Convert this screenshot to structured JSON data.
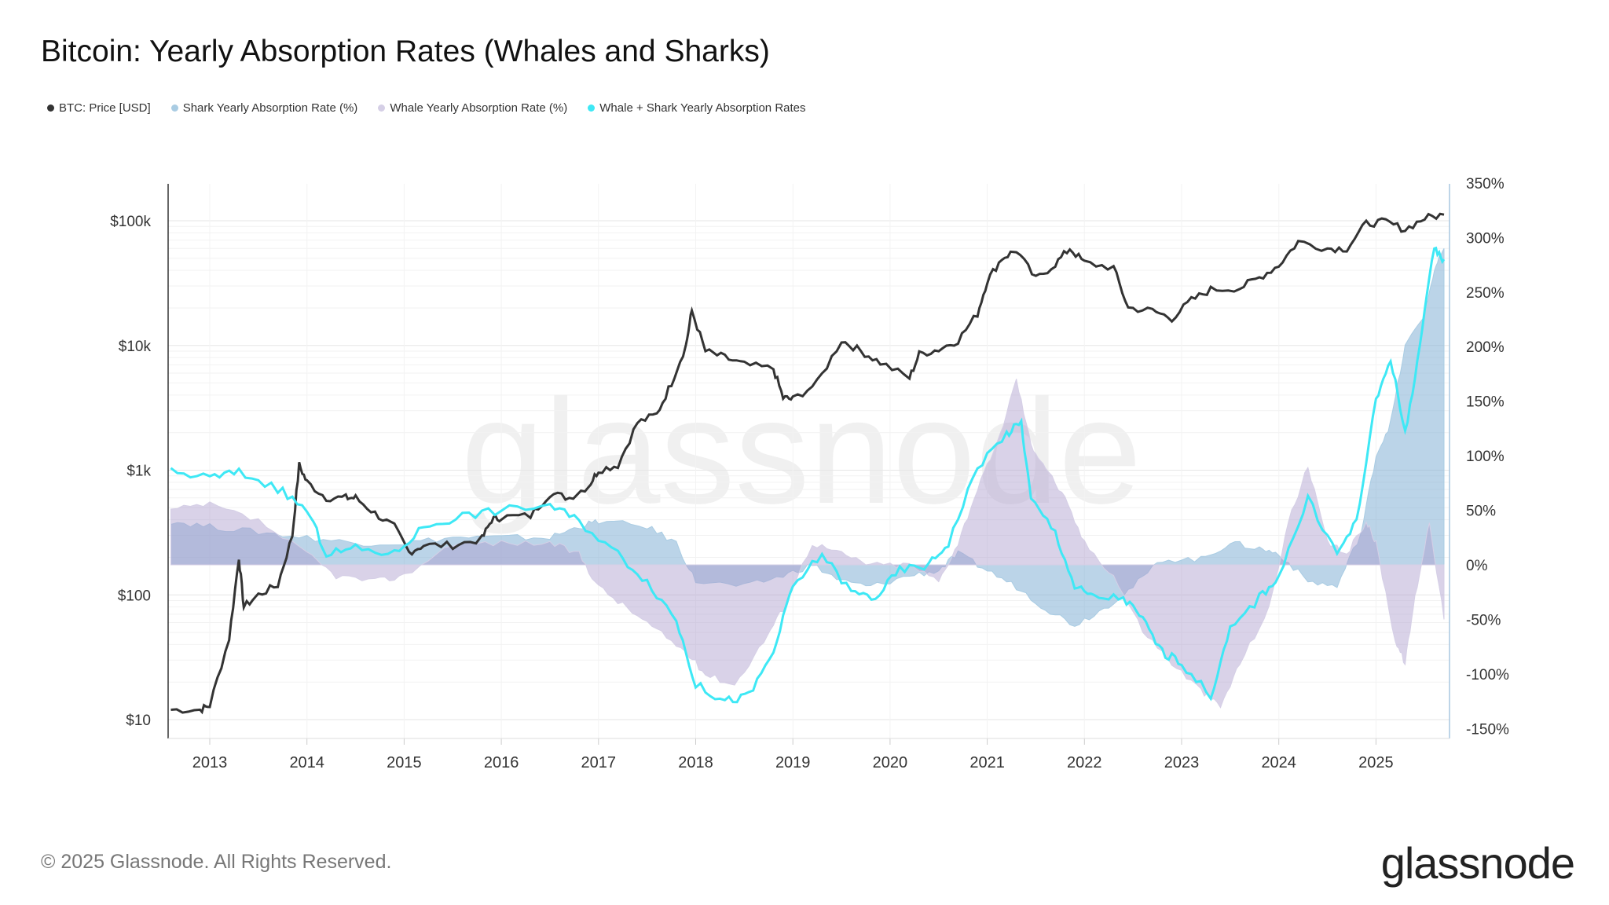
{
  "title": "Bitcoin: Yearly Absorption Rates (Whales and Sharks)",
  "legend": [
    {
      "label": "BTC: Price [USD]",
      "color": "#333333"
    },
    {
      "label": "Shark Yearly Absorption Rate (%)",
      "color": "#a9cce3"
    },
    {
      "label": "Whale Yearly Absorption Rate (%)",
      "color": "#d5cfe6"
    },
    {
      "label": "Whale + Shark Yearly Absorption Rates",
      "color": "#3ee8f5"
    }
  ],
  "footer": {
    "copyright": "© 2025 Glassnode. All Rights Reserved.",
    "logo": "glassnode"
  },
  "watermark": "glassnode",
  "chart_data": {
    "type": "line",
    "title": "Bitcoin: Yearly Absorption Rates (Whales and Sharks)",
    "x_ticks": [
      "2013",
      "2014",
      "2015",
      "2016",
      "2017",
      "2018",
      "2019",
      "2020",
      "2021",
      "2022",
      "2023",
      "2024",
      "2025"
    ],
    "xlim": [
      2012.6,
      2025.72
    ],
    "left_axis": {
      "scale": "log",
      "ticks": [
        "$10",
        "$100",
        "$1k",
        "$10k",
        "$100k"
      ],
      "tick_values": [
        10,
        100,
        1000,
        10000,
        100000
      ],
      "ylim": [
        6,
        250000
      ]
    },
    "right_axis": {
      "scale": "linear",
      "ticks": [
        "350%",
        "300%",
        "250%",
        "200%",
        "150%",
        "100%",
        "50%",
        "0%",
        "-50%",
        "-100%",
        "-150%"
      ],
      "tick_values": [
        350,
        300,
        250,
        200,
        150,
        100,
        50,
        0,
        -50,
        -100,
        -150
      ],
      "ylim": [
        -155,
        350
      ]
    },
    "grid": true,
    "legend_position": "top-left",
    "series": [
      {
        "name": "BTC: Price [USD]",
        "axis": "left",
        "kind": "line",
        "color": "#333333",
        "x": [
          2012.6,
          2012.9,
          2013.0,
          2013.2,
          2013.3,
          2013.35,
          2013.5,
          2013.7,
          2013.85,
          2013.92,
          2014.0,
          2014.2,
          2014.4,
          2014.5,
          2014.7,
          2014.9,
          2015.05,
          2015.2,
          2015.5,
          2015.8,
          2015.9,
          2016.0,
          2016.3,
          2016.5,
          2016.7,
          2016.9,
          2017.0,
          2017.2,
          2017.4,
          2017.6,
          2017.75,
          2017.9,
          2017.96,
          2018.1,
          2018.3,
          2018.5,
          2018.8,
          2018.9,
          2019.0,
          2019.25,
          2019.5,
          2019.7,
          2019.9,
          2020.2,
          2020.3,
          2020.5,
          2020.7,
          2020.9,
          2021.0,
          2021.15,
          2021.3,
          2021.5,
          2021.7,
          2021.85,
          2022.0,
          2022.3,
          2022.45,
          2022.7,
          2022.9,
          2023.1,
          2023.3,
          2023.6,
          2023.8,
          2024.0,
          2024.2,
          2024.5,
          2024.7,
          2024.9,
          2025.1,
          2025.3,
          2025.5,
          2025.7
        ],
        "y": [
          12,
          12,
          13,
          45,
          200,
          80,
          100,
          120,
          300,
          1100,
          800,
          600,
          600,
          600,
          450,
          350,
          220,
          250,
          250,
          280,
          400,
          420,
          430,
          650,
          600,
          750,
          1000,
          1100,
          2400,
          2800,
          5000,
          10000,
          19000,
          9000,
          8000,
          7000,
          6500,
          3800,
          3700,
          5000,
          11000,
          9000,
          7300,
          5500,
          8500,
          9300,
          11000,
          18000,
          33000,
          50000,
          58000,
          34000,
          45000,
          60000,
          46000,
          42000,
          20000,
          19000,
          16500,
          23000,
          28000,
          29000,
          35000,
          44000,
          68000,
          60000,
          60000,
          95000,
          98000,
          85000,
          105000,
          112000
        ]
      },
      {
        "name": "Shark Yearly Absorption Rate (%)",
        "axis": "right",
        "kind": "area",
        "color": "#a9cce3",
        "x": [
          2012.6,
          2013,
          2013.5,
          2014,
          2014.5,
          2015,
          2015.5,
          2016,
          2016.5,
          2016.8,
          2017,
          2017.5,
          2017.8,
          2018,
          2018.5,
          2018.9,
          2019.2,
          2019.5,
          2019.8,
          2020.2,
          2020.5,
          2020.7,
          2021,
          2021.3,
          2021.6,
          2021.9,
          2022.2,
          2022.5,
          2022.8,
          2023.2,
          2023.5,
          2023.8,
          2024,
          2024.3,
          2024.6,
          2024.85,
          2025,
          2025.15,
          2025.3,
          2025.5,
          2025.6,
          2025.7
        ],
        "y": [
          40,
          35,
          30,
          25,
          20,
          20,
          25,
          25,
          25,
          35,
          40,
          35,
          20,
          -15,
          -20,
          -10,
          0,
          -15,
          -20,
          -10,
          -5,
          10,
          -5,
          -20,
          -40,
          -55,
          -40,
          -20,
          5,
          5,
          20,
          15,
          10,
          -15,
          -20,
          30,
          100,
          130,
          200,
          230,
          270,
          290
        ]
      },
      {
        "name": "Whale Yearly Absorption Rate (%)",
        "axis": "right",
        "kind": "area",
        "color": "#d5cfe6",
        "x": [
          2012.6,
          2013,
          2013.5,
          2014,
          2014.3,
          2014.7,
          2015,
          2015.5,
          2016,
          2016.5,
          2016.8,
          2017,
          2017.3,
          2017.6,
          2017.9,
          2018.1,
          2018.4,
          2018.7,
          2018.9,
          2019.2,
          2019.5,
          2019.8,
          2020.2,
          2020.5,
          2020.7,
          2020.9,
          2021.1,
          2021.3,
          2021.45,
          2021.6,
          2021.8,
          2022,
          2022.3,
          2022.6,
          2022.9,
          2023.2,
          2023.4,
          2023.6,
          2023.9,
          2024.1,
          2024.3,
          2024.5,
          2024.7,
          2024.9,
          2025.0,
          2025.2,
          2025.3,
          2025.4,
          2025.55,
          2025.7
        ],
        "y": [
          50,
          55,
          40,
          10,
          -10,
          -15,
          -10,
          20,
          20,
          20,
          10,
          -20,
          -40,
          -60,
          -80,
          -100,
          -110,
          -70,
          -40,
          20,
          10,
          0,
          0,
          -15,
          20,
          70,
          110,
          170,
          110,
          90,
          60,
          20,
          -10,
          -60,
          -90,
          -115,
          -130,
          -90,
          -40,
          40,
          90,
          20,
          10,
          40,
          20,
          -70,
          -90,
          -30,
          40,
          -50
        ]
      },
      {
        "name": "Whale + Shark Yearly Absorption Rates",
        "axis": "right",
        "kind": "line",
        "color": "#3ee8f5",
        "x": [
          2012.6,
          2013,
          2013.3,
          2013.7,
          2014,
          2014.2,
          2014.5,
          2014.9,
          2015.2,
          2015.6,
          2016,
          2016.5,
          2016.8,
          2017.2,
          2017.5,
          2017.8,
          2018,
          2018.3,
          2018.55,
          2018.8,
          2019,
          2019.3,
          2019.6,
          2019.85,
          2020.1,
          2020.4,
          2020.6,
          2020.9,
          2021.2,
          2021.35,
          2021.45,
          2021.7,
          2021.9,
          2022.1,
          2022.4,
          2022.6,
          2022.8,
          2023.0,
          2023.3,
          2023.5,
          2023.8,
          2024.0,
          2024.3,
          2024.6,
          2024.8,
          2025.0,
          2025.15,
          2025.3,
          2025.45,
          2025.6,
          2025.7
        ],
        "y": [
          85,
          80,
          85,
          70,
          50,
          10,
          15,
          10,
          35,
          45,
          50,
          55,
          40,
          10,
          -15,
          -50,
          -110,
          -125,
          -120,
          -80,
          -20,
          10,
          -25,
          -30,
          -5,
          0,
          20,
          90,
          120,
          130,
          60,
          30,
          -20,
          -30,
          -30,
          -50,
          -80,
          -90,
          -120,
          -60,
          -30,
          -10,
          60,
          10,
          40,
          150,
          190,
          120,
          200,
          290,
          280
        ]
      }
    ]
  }
}
